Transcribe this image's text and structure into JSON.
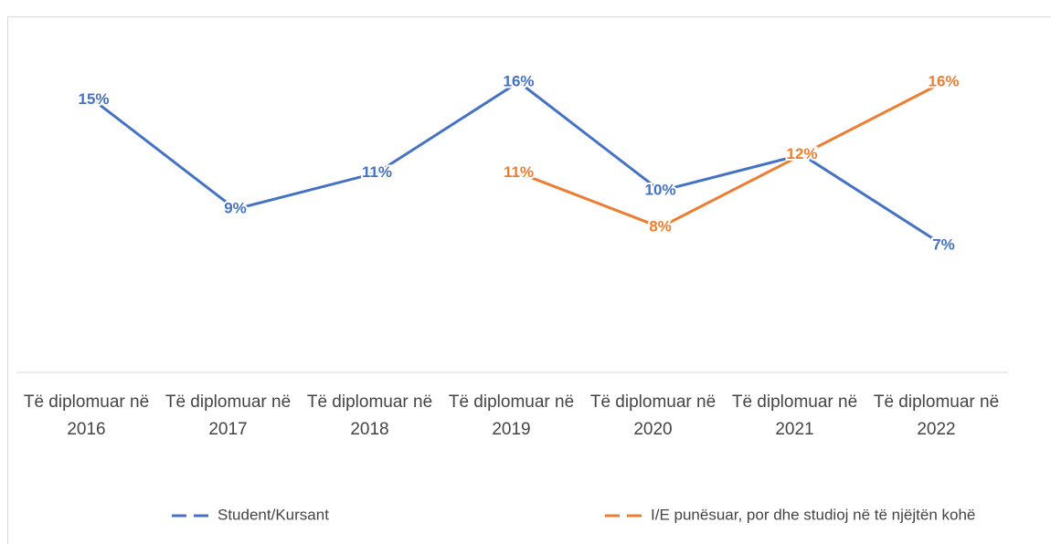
{
  "chart_data": {
    "type": "line",
    "categories": [
      "Të diplomuar në 2016",
      "Të diplomuar në 2017",
      "Të diplomuar në 2018",
      "Të diplomuar në 2019",
      "Të diplomuar në 2020",
      "Të diplomuar në 2021",
      "Të diplomuar në 2022"
    ],
    "series": [
      {
        "name": "Student/Kursant",
        "color": "#4472c4",
        "values": [
          15,
          9,
          11,
          16,
          10,
          12,
          7
        ],
        "value_labels": [
          "15%",
          "9%",
          "11%",
          "16%",
          "10%",
          "12%",
          "7%"
        ]
      },
      {
        "name": "I/E punësuar, por dhe studioj në të njëjtën kohë",
        "color": "#ed7d31",
        "values": [
          null,
          null,
          null,
          11,
          8,
          12,
          16
        ],
        "value_labels": [
          null,
          null,
          null,
          "11%",
          "8%",
          "12%",
          "16%"
        ]
      }
    ],
    "ylim": [
      0,
      17
    ]
  }
}
